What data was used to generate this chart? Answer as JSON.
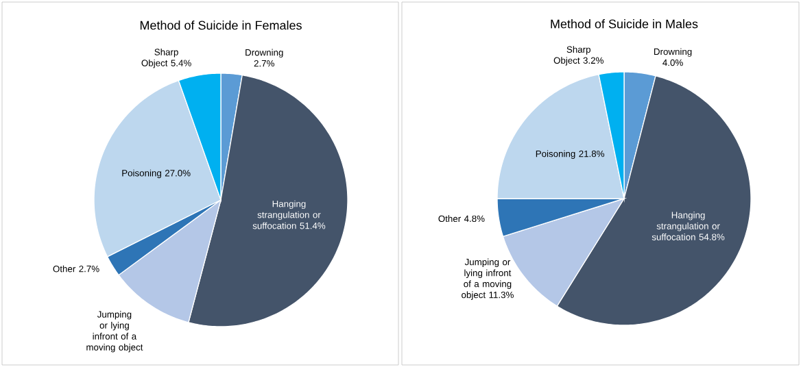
{
  "chart_data": [
    {
      "type": "pie",
      "title": "Method of Suicide in Females",
      "categories": [
        "Drowning",
        "Hanging strangulation or suffocation",
        "Jumping or lying infront of a moving object",
        "Other",
        "Poisoning",
        "Sharp Object"
      ],
      "values": [
        2.7,
        51.4,
        10.8,
        2.7,
        27.0,
        5.4
      ],
      "colors": [
        "#5b9bd5",
        "#44546a",
        "#b4c7e7",
        "#2e75b6",
        "#bdd7ee",
        "#00b0f0"
      ],
      "value_labels": [
        "2.7%",
        "51.4%",
        null,
        "2.7%",
        "27.0%",
        "5.4%"
      ]
    },
    {
      "type": "pie",
      "title": "Method of Suicide in Males",
      "categories": [
        "Drowning",
        "Hanging strangulation or suffocation",
        "Jumping or lying infront of a moving object",
        "Other",
        "Poisoning",
        "Sharp Object"
      ],
      "values": [
        4.0,
        54.8,
        11.3,
        4.8,
        21.8,
        3.2
      ],
      "colors": [
        "#5b9bd5",
        "#44546a",
        "#b4c7e7",
        "#2e75b6",
        "#bdd7ee",
        "#00b0f0"
      ],
      "value_labels": [
        "4.0%",
        "54.8%",
        "11.3%",
        "4.8%",
        "21.8%",
        "3.2%"
      ]
    }
  ]
}
